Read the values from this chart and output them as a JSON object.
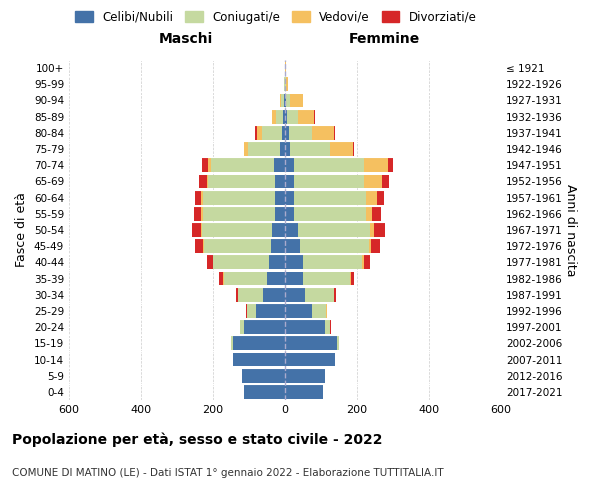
{
  "age_groups": [
    "0-4",
    "5-9",
    "10-14",
    "15-19",
    "20-24",
    "25-29",
    "30-34",
    "35-39",
    "40-44",
    "45-49",
    "50-54",
    "55-59",
    "60-64",
    "65-69",
    "70-74",
    "75-79",
    "80-84",
    "85-89",
    "90-94",
    "95-99",
    "100+"
  ],
  "birth_years": [
    "2017-2021",
    "2012-2016",
    "2007-2011",
    "2002-2006",
    "1997-2001",
    "1992-1996",
    "1987-1991",
    "1982-1986",
    "1977-1981",
    "1972-1976",
    "1967-1971",
    "1962-1966",
    "1957-1961",
    "1952-1956",
    "1947-1951",
    "1942-1946",
    "1937-1941",
    "1932-1936",
    "1927-1931",
    "1922-1926",
    "≤ 1921"
  ],
  "male": {
    "celibe": [
      115,
      120,
      145,
      145,
      115,
      80,
      60,
      50,
      45,
      40,
      35,
      28,
      28,
      28,
      30,
      13,
      8,
      5,
      3,
      1,
      0
    ],
    "coniugato": [
      0,
      0,
      0,
      5,
      10,
      25,
      70,
      120,
      155,
      185,
      195,
      200,
      200,
      185,
      175,
      90,
      55,
      20,
      8,
      2,
      0
    ],
    "vedovo": [
      0,
      0,
      0,
      0,
      0,
      0,
      0,
      1,
      1,
      2,
      3,
      4,
      5,
      5,
      10,
      10,
      15,
      10,
      4,
      1,
      0
    ],
    "divorziato": [
      0,
      0,
      0,
      0,
      1,
      2,
      5,
      12,
      15,
      22,
      25,
      22,
      18,
      20,
      15,
      2,
      5,
      2,
      0,
      0,
      0
    ]
  },
  "female": {
    "nubile": [
      105,
      110,
      140,
      145,
      110,
      75,
      55,
      50,
      50,
      42,
      35,
      25,
      25,
      25,
      25,
      15,
      10,
      5,
      3,
      1,
      0
    ],
    "coniugata": [
      0,
      0,
      0,
      5,
      15,
      40,
      80,
      130,
      165,
      190,
      200,
      200,
      200,
      195,
      195,
      110,
      65,
      30,
      12,
      2,
      0
    ],
    "vedova": [
      0,
      0,
      0,
      0,
      1,
      1,
      2,
      4,
      5,
      8,
      12,
      18,
      30,
      50,
      65,
      65,
      60,
      45,
      35,
      5,
      2
    ],
    "divorziata": [
      0,
      0,
      0,
      0,
      1,
      2,
      5,
      8,
      15,
      25,
      30,
      25,
      20,
      18,
      15,
      2,
      4,
      2,
      0,
      0,
      0
    ]
  },
  "colors": {
    "celibe": "#4472a8",
    "coniugato": "#c5d9a0",
    "vedovo": "#f5c060",
    "divorziato": "#d62728"
  },
  "xlim": 600,
  "title": "Popolazione per età, sesso e stato civile - 2022",
  "subtitle": "COMUNE DI MATINO (LE) - Dati ISTAT 1° gennaio 2022 - Elaborazione TUTTITALIA.IT",
  "legend_labels": [
    "Celibi/Nubili",
    "Coniugati/e",
    "Vedovi/e",
    "Divorziati/e"
  ],
  "xlabel_left": "Maschi",
  "xlabel_right": "Femmine",
  "ylabel_left": "Fasce di età",
  "ylabel_right": "Anni di nascita",
  "background_color": "#ffffff"
}
